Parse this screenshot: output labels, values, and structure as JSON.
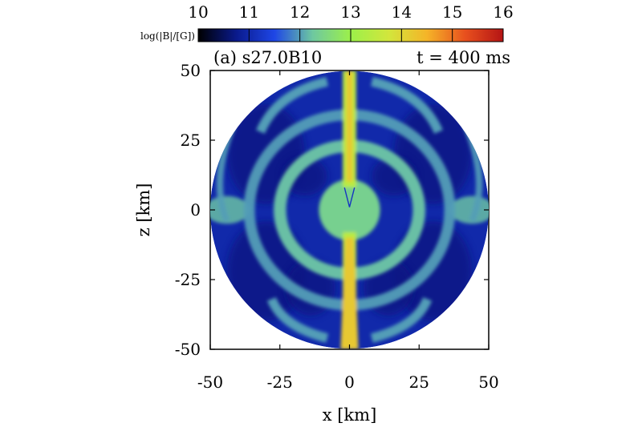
{
  "chart_data": {
    "type": "heatmap",
    "panel_label": "(a) s27.0B10",
    "time_label": "t = 400 ms",
    "xlabel": "x [km]",
    "ylabel": "z [km]",
    "xlim": [
      -50,
      50
    ],
    "ylim": [
      -50,
      50
    ],
    "xticks": [
      -50,
      -25,
      0,
      25,
      50
    ],
    "yticks": [
      -50,
      -25,
      0,
      25,
      50
    ],
    "colorbar": {
      "label": "log(|B|/[G])",
      "min": 10,
      "max": 16,
      "ticks": [
        10,
        11,
        12,
        13,
        14,
        15,
        16
      ],
      "colors": [
        "#000000",
        "#0a1a8c",
        "#1e46e6",
        "#6ec8a0",
        "#9cf04a",
        "#d2e63c",
        "#f5b428",
        "#e8501e",
        "#b41414"
      ]
    },
    "domain_radius": 50,
    "field": {
      "background_level": 11,
      "features": [
        {
          "name": "polar jet",
          "level": 14.2
        },
        {
          "name": "inner core",
          "level": 12.4
        },
        {
          "name": "shell ring",
          "level": 12.2
        },
        {
          "name": "outer arcs",
          "level": 12.0
        }
      ]
    }
  }
}
